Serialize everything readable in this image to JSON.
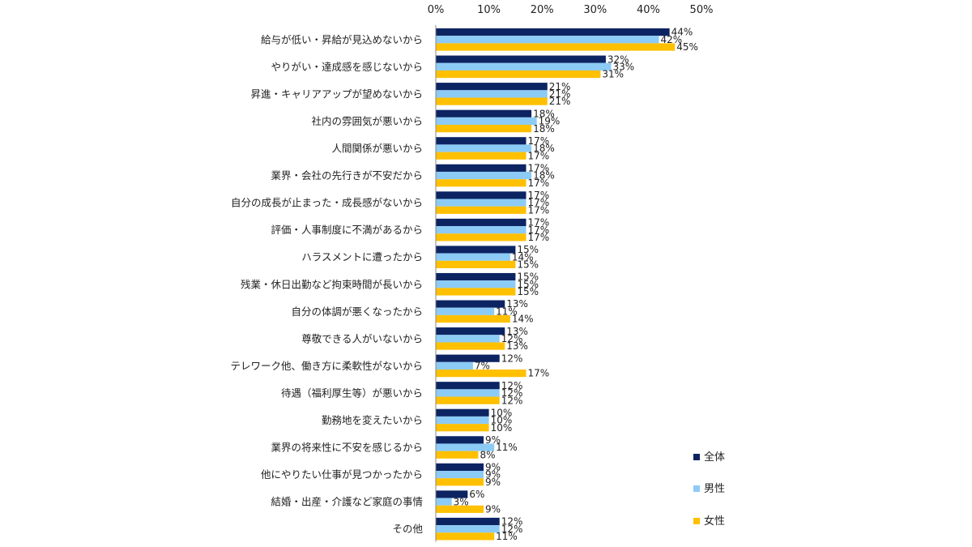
{
  "chart_data": {
    "type": "bar",
    "orientation": "horizontal",
    "title": "",
    "xlabel": "",
    "ylabel": "",
    "xlim": [
      0,
      50
    ],
    "x_ticks": [
      "0%",
      "10%",
      "20%",
      "30%",
      "40%",
      "50%"
    ],
    "x_tick_values": [
      0,
      10,
      20,
      30,
      40,
      50
    ],
    "grid": false,
    "legend_position": "right",
    "categories": [
      "給与が低い・昇給が見込めないから",
      "やりがい・達成感を感じないから",
      "昇進・キャリアアップが望めないから",
      "社内の雰囲気が悪いから",
      "人間関係が悪いから",
      "業界・会社の先行きが不安だから",
      "自分の成長が止まった・成長感がないから",
      "評価・人事制度に不満があるから",
      "ハラスメントに遭ったから",
      "残業・休日出勤など拘束時間が長いから",
      "自分の体調が悪くなったから",
      "尊敬できる人がいないから",
      "テレワーク他、働き方に柔軟性がないから",
      "待遇（福利厚生等）が悪いから",
      "勤務地を変えたいから",
      "業界の将来性に不安を感じるから",
      "他にやりたい仕事が見つかったから",
      "結婚・出産・介護など家庭の事情",
      "その他"
    ],
    "series": [
      {
        "name": "全体",
        "color": "#0d2463",
        "values": [
          44,
          32,
          21,
          18,
          17,
          17,
          17,
          17,
          15,
          15,
          13,
          13,
          12,
          12,
          10,
          9,
          9,
          6,
          12
        ],
        "labels": [
          "44%",
          "32%",
          "21%",
          "18%",
          "17%",
          "17%",
          "17%",
          "17%",
          "15%",
          "15%",
          "13%",
          "13%",
          "12%",
          "12%",
          "10%",
          "9%",
          "9%",
          "6%",
          "12%"
        ]
      },
      {
        "name": "男性",
        "color": "#8ccbf5",
        "values": [
          42,
          33,
          21,
          19,
          18,
          18,
          17,
          17,
          14,
          15,
          11,
          12,
          7,
          12,
          10,
          11,
          9,
          3,
          12
        ],
        "labels": [
          "42%",
          "33%",
          "21%",
          "19%",
          "18%",
          "18%",
          "17%",
          "17%",
          "14%",
          "15%",
          "11%",
          "12%",
          "7%",
          "12%",
          "10%",
          "11%",
          "9%",
          "3%",
          "12%"
        ]
      },
      {
        "name": "女性",
        "color": "#ffc000",
        "values": [
          45,
          31,
          21,
          18,
          17,
          17,
          17,
          17,
          15,
          15,
          14,
          13,
          17,
          12,
          10,
          8,
          9,
          9,
          11
        ],
        "labels": [
          "45%",
          "31%",
          "21%",
          "18%",
          "17%",
          "17%",
          "17%",
          "17%",
          "15%",
          "15%",
          "14%",
          "13%",
          "17%",
          "12%",
          "10%",
          "8%",
          "9%",
          "9%",
          "11%"
        ]
      }
    ]
  }
}
